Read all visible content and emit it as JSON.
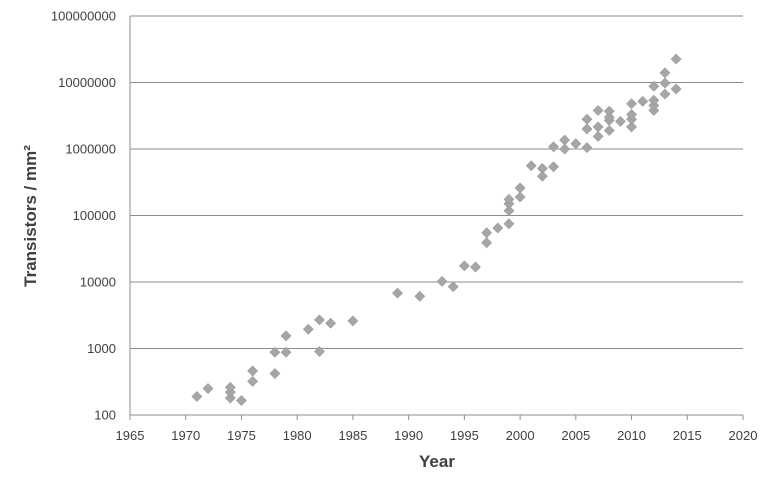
{
  "chart_data": {
    "type": "scatter",
    "xlabel": "Year",
    "ylabel": "Transistors / mm²",
    "xlim": [
      1965,
      2020
    ],
    "ylim": [
      100,
      100000000
    ],
    "yscale": "log",
    "grid": "horizontal",
    "marker": "diamond",
    "marker_color": "#a6a6a6",
    "xticks": [
      "1965",
      "1970",
      "1975",
      "1980",
      "1985",
      "1990",
      "1995",
      "2000",
      "2005",
      "2010",
      "2015",
      "2020"
    ],
    "yticks": [
      "100",
      "1000",
      "10000",
      "100000",
      "1000000",
      "10000000",
      "100000000"
    ],
    "points": [
      [
        1971,
        190
      ],
      [
        1972,
        250
      ],
      [
        1974,
        180
      ],
      [
        1974,
        220
      ],
      [
        1974,
        260
      ],
      [
        1975,
        165
      ],
      [
        1976,
        320
      ],
      [
        1976,
        460
      ],
      [
        1978,
        420
      ],
      [
        1978,
        880
      ],
      [
        1979,
        880
      ],
      [
        1979,
        1550
      ],
      [
        1981,
        1950
      ],
      [
        1982,
        900
      ],
      [
        1982,
        2700
      ],
      [
        1983,
        2400
      ],
      [
        1985,
        2600
      ],
      [
        1989,
        6800
      ],
      [
        1991,
        6100
      ],
      [
        1993,
        10200
      ],
      [
        1994,
        8500
      ],
      [
        1995,
        17500
      ],
      [
        1996,
        16800
      ],
      [
        1997,
        39000
      ],
      [
        1997,
        55000
      ],
      [
        1998,
        65000
      ],
      [
        1999,
        75000
      ],
      [
        1999,
        118000
      ],
      [
        1999,
        150000
      ],
      [
        1999,
        175000
      ],
      [
        2000,
        190000
      ],
      [
        2000,
        260000
      ],
      [
        2001,
        560000
      ],
      [
        2002,
        390000
      ],
      [
        2002,
        510000
      ],
      [
        2003,
        540000
      ],
      [
        2003,
        1080000
      ],
      [
        2004,
        1000000
      ],
      [
        2004,
        1360000
      ],
      [
        2005,
        1200000
      ],
      [
        2006,
        1050000
      ],
      [
        2006,
        2000000
      ],
      [
        2006,
        2800000
      ],
      [
        2007,
        1550000
      ],
      [
        2007,
        2150000
      ],
      [
        2007,
        3800000
      ],
      [
        2008,
        1900000
      ],
      [
        2008,
        2700000
      ],
      [
        2008,
        3000000
      ],
      [
        2008,
        3700000
      ],
      [
        2009,
        2600000
      ],
      [
        2010,
        2150000
      ],
      [
        2010,
        2800000
      ],
      [
        2010,
        3300000
      ],
      [
        2010,
        4800000
      ],
      [
        2011,
        5200000
      ],
      [
        2012,
        3800000
      ],
      [
        2012,
        4500000
      ],
      [
        2012,
        5400000
      ],
      [
        2012,
        8800000
      ],
      [
        2013,
        6700000
      ],
      [
        2013,
        9800000
      ],
      [
        2013,
        14000000
      ],
      [
        2014,
        8000000
      ],
      [
        2014,
        22500000
      ]
    ]
  }
}
